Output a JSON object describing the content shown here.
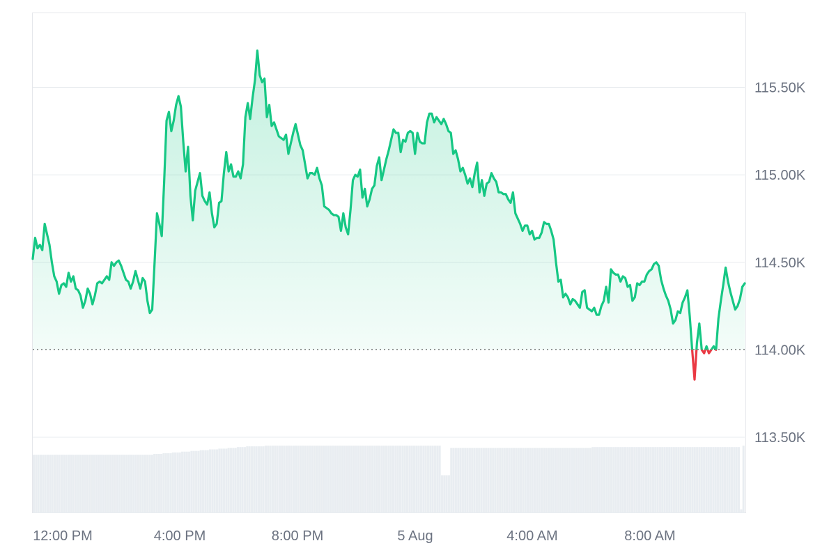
{
  "chart_data": {
    "type": "area",
    "x_ticks": [
      "12:00 PM",
      "4:00 PM",
      "8:00 PM",
      "5 Aug",
      "4:00 AM",
      "8:00 AM"
    ],
    "y_ticks": [
      "113.50K",
      "114.00K",
      "114.50K",
      "115.00K",
      "115.50K"
    ],
    "ylim": [
      113500,
      115920
    ],
    "baseline": 114000,
    "colors": {
      "up": "#16c784",
      "down": "#ea3943",
      "volume": "#e9edf1"
    },
    "series": [
      {
        "values": [
          114520,
          114640,
          114580,
          114600,
          114570,
          114720,
          114660,
          114600,
          114500,
          114420,
          114390,
          114320,
          114370,
          114380,
          114360,
          114440,
          114390,
          114420,
          114350,
          114340,
          114310,
          114240,
          114280,
          114350,
          114320,
          114260,
          114310,
          114380,
          114390,
          114380,
          114400,
          114420,
          114400,
          114500,
          114480,
          114500,
          114510,
          114480,
          114440,
          114400,
          114390,
          114350,
          114390,
          114450,
          114400,
          114350,
          114410,
          114390,
          114280,
          114210,
          114230,
          114500,
          114780,
          114720,
          114650,
          114960,
          115310,
          115360,
          115250,
          115310,
          115400,
          115450,
          115390,
          115190,
          115020,
          115160,
          114880,
          114740,
          114910,
          114960,
          115010,
          114880,
          114850,
          114830,
          114900,
          114780,
          114700,
          114720,
          114840,
          114850,
          115010,
          115130,
          115020,
          115060,
          114990,
          114990,
          115020,
          114980,
          115060,
          115330,
          115410,
          115320,
          115440,
          115540,
          115710,
          115570,
          115530,
          115550,
          115330,
          115400,
          115280,
          115300,
          115260,
          115220,
          115210,
          115200,
          115230,
          115120,
          115180,
          115240,
          115290,
          115230,
          115170,
          115140,
          115060,
          114980,
          115010,
          115010,
          115000,
          115040,
          114980,
          114940,
          114820,
          114810,
          114800,
          114780,
          114770,
          114770,
          114760,
          114680,
          114780,
          114700,
          114660,
          114800,
          114970,
          115000,
          114990,
          115030,
          114870,
          114920,
          114820,
          114860,
          114920,
          114940,
          115050,
          115100,
          114970,
          115030,
          115090,
          115140,
          115200,
          115260,
          115240,
          115240,
          115130,
          115200,
          115190,
          115240,
          115250,
          115240,
          115120,
          115240,
          115190,
          115180,
          115180,
          115300,
          115350,
          115350,
          115300,
          115330,
          115310,
          115290,
          115320,
          115290,
          115250,
          115240,
          115120,
          115140,
          115090,
          115020,
          115040,
          115000,
          114950,
          114980,
          114930,
          115010,
          115070,
          114900,
          114970,
          114880,
          114950,
          114960,
          115010,
          114980,
          114960,
          114900,
          114900,
          114890,
          114890,
          114860,
          114840,
          114900,
          114780,
          114750,
          114720,
          114680,
          114710,
          114710,
          114660,
          114680,
          114630,
          114640,
          114640,
          114670,
          114730,
          114720,
          114720,
          114680,
          114630,
          114500,
          114390,
          114400,
          114300,
          114320,
          114300,
          114260,
          114290,
          114280,
          114260,
          114240,
          114330,
          114340,
          114240,
          114230,
          114220,
          114240,
          114200,
          114200,
          114250,
          114280,
          114360,
          114270,
          114460,
          114440,
          114430,
          114430,
          114390,
          114420,
          114410,
          114360,
          114370,
          114280,
          114300,
          114380,
          114370,
          114390,
          114390,
          114430,
          114450,
          114460,
          114490,
          114500,
          114480,
          114400,
          114350,
          114310,
          114280,
          114230,
          114150,
          114170,
          114220,
          114210,
          114270,
          114300,
          114340,
          114190,
          114000,
          113830,
          114040,
          114150,
          114000,
          113980,
          114020,
          113980,
          114000,
          114020,
          114000,
          114180,
          114280,
          114370,
          114470,
          114390,
          114330,
          114280,
          114230,
          114250,
          114290,
          114360,
          114380
        ]
      }
    ],
    "volume": [
      0.77,
      0.77,
      0.77,
      0.77,
      0.77,
      0.77,
      0.77,
      0.77,
      0.77,
      0.77,
      0.77,
      0.77,
      0.77,
      0.77,
      0.77,
      0.77,
      0.77,
      0.77,
      0.77,
      0.77,
      0.77,
      0.77,
      0.77,
      0.77,
      0.77,
      0.77,
      0.77,
      0.77,
      0.77,
      0.77,
      0.77,
      0.77,
      0.77,
      0.77,
      0.77,
      0.77,
      0.77,
      0.77,
      0.77,
      0.77,
      0.77,
      0.77,
      0.77,
      0.77,
      0.77,
      0.77,
      0.77,
      0.77,
      0.77,
      0.77,
      0.77,
      0.77,
      0.78,
      0.78,
      0.78,
      0.78,
      0.79,
      0.79,
      0.79,
      0.79,
      0.8,
      0.8,
      0.8,
      0.8,
      0.81,
      0.81,
      0.81,
      0.81,
      0.82,
      0.82,
      0.82,
      0.82,
      0.83,
      0.83,
      0.83,
      0.83,
      0.84,
      0.84,
      0.84,
      0.84,
      0.85,
      0.85,
      0.85,
      0.85,
      0.86,
      0.86,
      0.86,
      0.86,
      0.87,
      0.87,
      0.87,
      0.87,
      0.88,
      0.88,
      0.88,
      0.88,
      0.88,
      0.88,
      0.88,
      0.88,
      0.89,
      0.89,
      0.89,
      0.89,
      0.89,
      0.89,
      0.89,
      0.89,
      0.89,
      0.89,
      0.89,
      0.89,
      0.89,
      0.89,
      0.89,
      0.89,
      0.89,
      0.89,
      0.89,
      0.89,
      0.89,
      0.89,
      0.89,
      0.89,
      0.89,
      0.89,
      0.89,
      0.89,
      0.89,
      0.89,
      0.89,
      0.89,
      0.89,
      0.89,
      0.89,
      0.89,
      0.89,
      0.89,
      0.89,
      0.89,
      0.89,
      0.89,
      0.89,
      0.89,
      0.89,
      0.89,
      0.89,
      0.89,
      0.89,
      0.89,
      0.89,
      0.89,
      0.89,
      0.89,
      0.89,
      0.89,
      0.89,
      0.89,
      0.89,
      0.89,
      0.89,
      0.89,
      0.89,
      0.89,
      0.89,
      0.89,
      0.89,
      0.89,
      0.89,
      0.89,
      0.89,
      0.89,
      0.89,
      0.89,
      0.89,
      0.89,
      0.5,
      0.5,
      0.5,
      0.5,
      0.86,
      0.86,
      0.86,
      0.86,
      0.86,
      0.86,
      0.86,
      0.86,
      0.86,
      0.86,
      0.86,
      0.86,
      0.86,
      0.86,
      0.86,
      0.86,
      0.86,
      0.86,
      0.86,
      0.86,
      0.86,
      0.86,
      0.86,
      0.86,
      0.86,
      0.86,
      0.86,
      0.86,
      0.86,
      0.86,
      0.86,
      0.86,
      0.86,
      0.86,
      0.86,
      0.86,
      0.86,
      0.86,
      0.86,
      0.86,
      0.86,
      0.86,
      0.86,
      0.86,
      0.86,
      0.86,
      0.86,
      0.86,
      0.86,
      0.86,
      0.86,
      0.86,
      0.86,
      0.86,
      0.86,
      0.86,
      0.86,
      0.86,
      0.86,
      0.86,
      0.86,
      0.87,
      0.87,
      0.87,
      0.87,
      0.87,
      0.87,
      0.87,
      0.87,
      0.87,
      0.87,
      0.87,
      0.87,
      0.87,
      0.87,
      0.87,
      0.87,
      0.87,
      0.87,
      0.87,
      0.87,
      0.87,
      0.87,
      0.87,
      0.87,
      0.87,
      0.87,
      0.87,
      0.87,
      0.87,
      0.87,
      0.87,
      0.87,
      0.87,
      0.87,
      0.87,
      0.87,
      0.87,
      0.87,
      0.87,
      0.87,
      0.87,
      0.87,
      0.87,
      0.87,
      0.87,
      0.87,
      0.87,
      0.87,
      0.87,
      0.87,
      0.87,
      0.87,
      0.87,
      0.87,
      0.87,
      0.87,
      0.87,
      0.87,
      0.87,
      0.87,
      0.87,
      0.87,
      0.87,
      0.87,
      0.05,
      0.89
    ],
    "grid": true
  }
}
